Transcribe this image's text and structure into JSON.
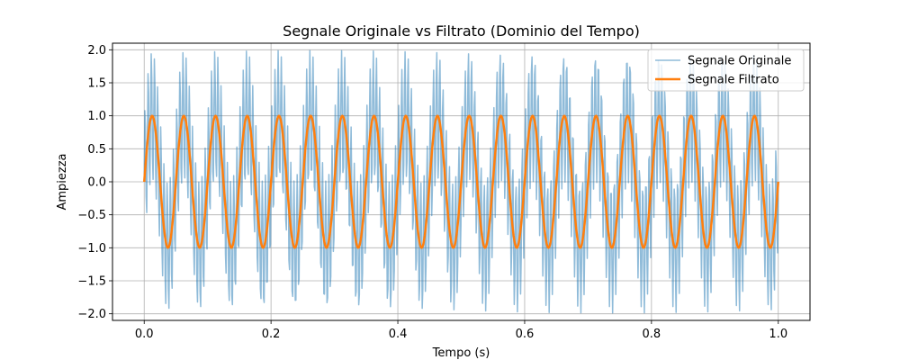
{
  "chart_data": {
    "type": "line",
    "title": "Segnale Originale vs Filtrato (Dominio del Tempo)",
    "xlabel": "Tempo (s)",
    "ylabel": "Ampiezza",
    "xlim": [
      -0.05,
      1.05
    ],
    "ylim": [
      -2.1,
      2.1
    ],
    "xticks": [
      0.0,
      0.2,
      0.4,
      0.6,
      0.8,
      1.0
    ],
    "xtick_labels": [
      "0.0",
      "0.2",
      "0.4",
      "0.6",
      "0.8",
      "1.0"
    ],
    "yticks": [
      -2.0,
      -1.5,
      -1.0,
      -0.5,
      0.0,
      0.5,
      1.0,
      1.5,
      2.0
    ],
    "ytick_labels": [
      "−2.0",
      "−1.5",
      "−1.0",
      "−0.5",
      "0.0",
      "0.5",
      "1.0",
      "1.5",
      "2.0"
    ],
    "grid": true,
    "legend_position": "top-right",
    "series": [
      {
        "name": "Segnale Originale",
        "color": "#1f77b4",
        "opacity": 0.5,
        "line_width": 1.5,
        "components": [
          {
            "amplitude": 1.0,
            "frequency_hz": 20
          },
          {
            "amplitude": 1.0,
            "frequency_hz": 200
          }
        ],
        "x_range": [
          0.0,
          1.0
        ],
        "sample_count": 1000
      },
      {
        "name": "Segnale Filtrato",
        "color": "#ff7f0e",
        "opacity": 1.0,
        "line_width": 2.5,
        "components": [
          {
            "amplitude": 1.0,
            "frequency_hz": 20
          }
        ],
        "x_range": [
          0.0,
          1.0
        ],
        "sample_count": 1000
      }
    ]
  }
}
